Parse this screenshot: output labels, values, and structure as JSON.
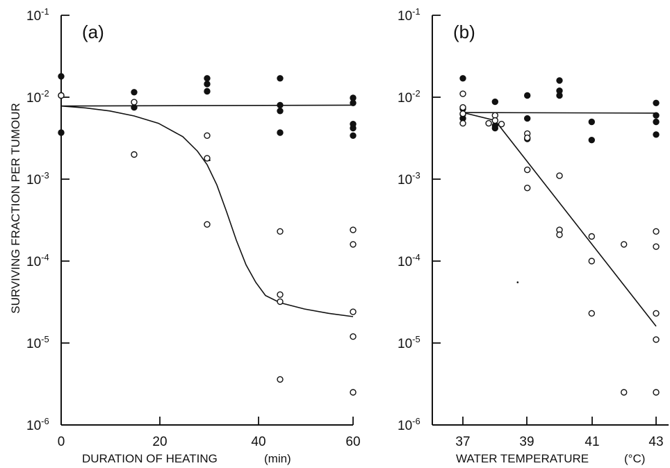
{
  "chart_data": [
    {
      "type": "scatter",
      "panel_label": "(a)",
      "xlabel": "DURATION OF HEATING",
      "xunit": "(min)",
      "ylabel": "SURVIVING FRACTION PER TUMOUR",
      "y_scale": "log",
      "xlim": [
        0,
        60
      ],
      "ylim": [
        1e-06,
        0.1
      ],
      "x_ticks": [
        "0",
        "20",
        "40",
        "60"
      ],
      "y_ticks": [
        {
          "base": "10",
          "exp": "-1",
          "value": 0.1
        },
        {
          "base": "10",
          "exp": "-2",
          "value": 0.01
        },
        {
          "base": "10",
          "exp": "-3",
          "value": 0.001
        },
        {
          "base": "10",
          "exp": "-4",
          "value": 0.0001
        },
        {
          "base": "10",
          "exp": "-5",
          "value": 1e-05
        },
        {
          "base": "10",
          "exp": "-6",
          "value": 1e-06
        }
      ],
      "series": [
        {
          "marker": "filled",
          "points": [
            [
              0,
              0.018
            ],
            [
              0,
              0.0105
            ],
            [
              0,
              0.0037
            ],
            [
              15,
              0.0115
            ],
            [
              15,
              0.0075
            ],
            [
              30,
              0.017
            ],
            [
              30,
              0.0145
            ],
            [
              30,
              0.0118
            ],
            [
              45,
              0.017
            ],
            [
              45,
              0.008
            ],
            [
              45,
              0.0068
            ],
            [
              45,
              0.0037
            ],
            [
              60,
              0.0098
            ],
            [
              60,
              0.0085
            ],
            [
              60,
              0.0047
            ],
            [
              60,
              0.0042
            ],
            [
              60,
              0.0034
            ]
          ],
          "fit": [
            [
              0,
              0.0078
            ],
            [
              60,
              0.008
            ]
          ]
        },
        {
          "marker": "open",
          "points": [
            [
              0,
              0.0105
            ],
            [
              15,
              0.0087
            ],
            [
              15,
              0.002
            ],
            [
              30,
              0.0034
            ],
            [
              30,
              0.0018
            ],
            [
              30,
              0.00028
            ],
            [
              45,
              0.00023
            ],
            [
              45,
              3.9e-05
            ],
            [
              45,
              3.2e-05
            ],
            [
              45,
              3.6e-06
            ],
            [
              60,
              0.00024
            ],
            [
              60,
              0.00016
            ],
            [
              60,
              2.4e-05
            ],
            [
              60,
              1.2e-05
            ],
            [
              60,
              2.5e-06
            ]
          ],
          "fit": [
            [
              0,
              0.0078
            ],
            [
              5,
              0.0074
            ],
            [
              10,
              0.0068
            ],
            [
              15,
              0.0059
            ],
            [
              20,
              0.0048
            ],
            [
              25,
              0.0033
            ],
            [
              28,
              0.0022
            ],
            [
              30,
              0.0015
            ],
            [
              32,
              0.00085
            ],
            [
              34,
              0.0004
            ],
            [
              36,
              0.00018
            ],
            [
              38,
              9e-05
            ],
            [
              40,
              5.5e-05
            ],
            [
              42,
              3.8e-05
            ],
            [
              45,
              3.1e-05
            ],
            [
              50,
              2.6e-05
            ],
            [
              55,
              2.3e-05
            ],
            [
              60,
              2.1e-05
            ]
          ]
        }
      ]
    },
    {
      "type": "scatter",
      "panel_label": "(b)",
      "xlabel": "WATER TEMPERATURE",
      "xunit": "(°C)",
      "ylabel": "",
      "y_scale": "log",
      "xlim": [
        36,
        43.5
      ],
      "ylim": [
        1e-06,
        0.1
      ],
      "x_ticks": [
        "37",
        "39",
        "41",
        "43"
      ],
      "y_ticks": [
        {
          "base": "10",
          "exp": "-1",
          "value": 0.1
        },
        {
          "base": "10",
          "exp": "-2",
          "value": 0.01
        },
        {
          "base": "10",
          "exp": "-3",
          "value": 0.001
        },
        {
          "base": "10",
          "exp": "-4",
          "value": 0.0001
        },
        {
          "base": "10",
          "exp": "-5",
          "value": 1e-05
        },
        {
          "base": "10",
          "exp": "-6",
          "value": 1e-06
        }
      ],
      "series": [
        {
          "marker": "filled",
          "points": [
            [
              37,
              0.017
            ],
            [
              37,
              0.0072
            ],
            [
              37,
              0.0062
            ],
            [
              37,
              0.0055
            ],
            [
              38,
              0.0088
            ],
            [
              38,
              0.0045
            ],
            [
              38,
              0.0042
            ],
            [
              39,
              0.0105
            ],
            [
              39,
              0.0055
            ],
            [
              39,
              0.0031
            ],
            [
              40,
              0.016
            ],
            [
              40,
              0.012
            ],
            [
              40,
              0.0105
            ],
            [
              41,
              0.005
            ],
            [
              41,
              0.003
            ],
            [
              43,
              0.0085
            ],
            [
              43,
              0.006
            ],
            [
              43,
              0.005
            ],
            [
              43,
              0.0035
            ]
          ],
          "fit": [
            [
              37,
              0.0065
            ],
            [
              43,
              0.0064
            ]
          ]
        },
        {
          "marker": "open",
          "points": [
            [
              37,
              0.011
            ],
            [
              37,
              0.0075
            ],
            [
              37,
              0.0063
            ],
            [
              37,
              0.0048
            ],
            [
              37.8,
              0.0048
            ],
            [
              38,
              0.006
            ],
            [
              38,
              0.0052
            ],
            [
              38.2,
              0.0047
            ],
            [
              39,
              0.0036
            ],
            [
              39,
              0.0032
            ],
            [
              39,
              0.0013
            ],
            [
              39,
              0.00078
            ],
            [
              40,
              0.0011
            ],
            [
              40,
              0.00024
            ],
            [
              40,
              0.00021
            ],
            [
              41,
              0.0002
            ],
            [
              41,
              0.0001
            ],
            [
              41,
              2.3e-05
            ],
            [
              42,
              0.00016
            ],
            [
              42,
              2.5e-06
            ],
            [
              43,
              0.00023
            ],
            [
              43,
              0.00015
            ],
            [
              43,
              2.3e-05
            ],
            [
              43,
              1.1e-05
            ],
            [
              43,
              2.5e-06
            ]
          ],
          "fit": [
            [
              37,
              0.0065
            ],
            [
              38,
              0.0052
            ],
            [
              43,
              1.6e-05
            ]
          ]
        }
      ]
    }
  ],
  "stray_marks": [
    {
      "panel": 0,
      "x": 30.5,
      "y": 0.0017
    },
    {
      "panel": 1,
      "x": 38.7,
      "y": 5.5e-05
    }
  ]
}
